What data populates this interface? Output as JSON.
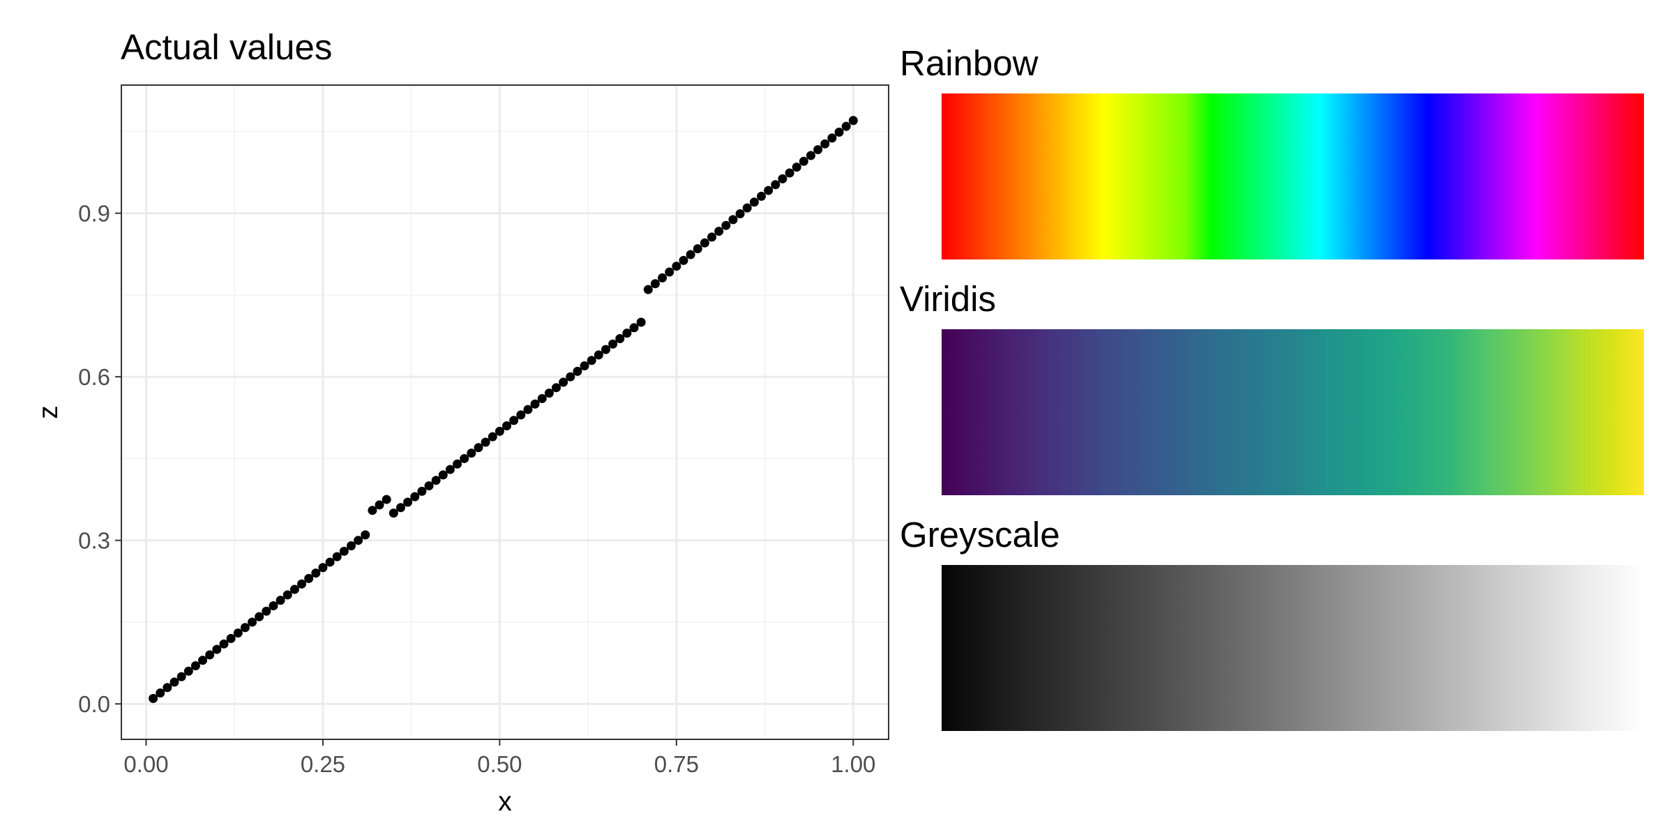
{
  "chart_data": [
    {
      "type": "scatter",
      "title": "Actual values",
      "xlabel": "x",
      "ylabel": "z",
      "xlim": [
        -0.035,
        1.05
      ],
      "ylim": [
        -0.065,
        1.135
      ],
      "xticks": [
        "0.00",
        "0.25",
        "0.50",
        "0.75",
        "1.00"
      ],
      "yticks": [
        "0.0",
        "0.3",
        "0.6",
        "0.9"
      ],
      "grid": true,
      "point_color": "#000000",
      "segments": [
        {
          "x_start": 0.01,
          "x_end": 0.31,
          "z_start": 0.01,
          "z_end": 0.31
        },
        {
          "x_start": 0.32,
          "x_end": 0.34,
          "z_start": 0.355,
          "z_end": 0.375
        },
        {
          "x_start": 0.35,
          "x_end": 0.7,
          "z_start": 0.35,
          "z_end": 0.7
        },
        {
          "x_start": 0.71,
          "x_end": 1.0,
          "z_start": 0.76,
          "z_end": 1.07
        }
      ]
    },
    {
      "type": "heatmap",
      "palettes": [
        {
          "title": "Rainbow",
          "stops": [
            "#ff0000",
            "#ff2a00",
            "#ff5500",
            "#ff8000",
            "#ffaa00",
            "#ffd500",
            "#ffff00",
            "#d4ff00",
            "#aaff00",
            "#80ff00",
            "#00ff00",
            "#00ff40",
            "#00ff80",
            "#00ffbf",
            "#00ffff",
            "#00bfff",
            "#0080ff",
            "#0040ff",
            "#0000ff",
            "#4000ff",
            "#8000ff",
            "#bf00ff",
            "#ff00ff",
            "#ff00bf",
            "#ff0080",
            "#ff0040",
            "#ff0000"
          ]
        },
        {
          "title": "Viridis",
          "stops": [
            "#440154",
            "#471063",
            "#481f70",
            "#472d7b",
            "#443a83",
            "#3e4989",
            "#3b528b",
            "#365d8d",
            "#31688e",
            "#2c728e",
            "#287c8e",
            "#25848e",
            "#21918c",
            "#1e9b8a",
            "#20a486",
            "#28ae80",
            "#35b779",
            "#51c56a",
            "#6ece58",
            "#8fd744",
            "#b5de2b",
            "#d8e219",
            "#fde725"
          ]
        },
        {
          "title": "Greyscale",
          "stops": [
            "#050505",
            "#141414",
            "#222222",
            "#2e2e2e",
            "#3b3b3b",
            "#474747",
            "#555555",
            "#626262",
            "#707070",
            "#7e7e7e",
            "#8c8c8c",
            "#9a9a9a",
            "#a8a8a8",
            "#b7b7b7",
            "#c6c6c6",
            "#d5d5d5",
            "#e4e4e4",
            "#f2f2f2",
            "#ffffff"
          ]
        }
      ]
    }
  ]
}
